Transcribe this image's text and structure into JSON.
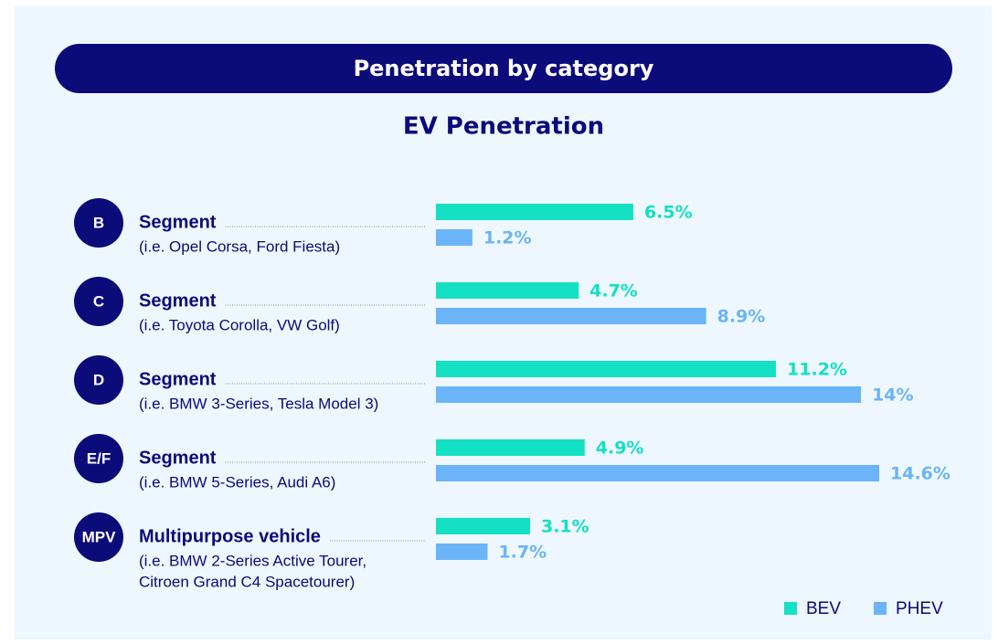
{
  "chart_data": {
    "type": "bar",
    "orientation": "horizontal",
    "header": "Penetration by category",
    "title": "EV Penetration",
    "categories": [
      {
        "badge": "B",
        "name": "Segment",
        "examples": [
          "(i.e. Opel Corsa, Ford Fiesta)"
        ]
      },
      {
        "badge": "C",
        "name": "Segment",
        "examples": [
          "(i.e. Toyota Corolla, VW Golf)"
        ]
      },
      {
        "badge": "D",
        "name": "Segment",
        "examples": [
          "(i.e. BMW 3-Series, Tesla Model 3)"
        ]
      },
      {
        "badge": "E/F",
        "name": "Segment",
        "examples": [
          "(i.e. BMW 5-Series, Audi A6)"
        ]
      },
      {
        "badge": "MPV",
        "name": "Multipurpose vehicle",
        "examples": [
          "(i.e. BMW 2-Series Active Tourer,",
          "Citroen Grand C4 Spacetourer)"
        ]
      }
    ],
    "series": [
      {
        "name": "BEV",
        "color": "#14e0c4",
        "values": [
          6.5,
          4.7,
          11.2,
          4.9,
          3.1
        ],
        "value_labels": [
          "6.5%",
          "4.7%",
          "11.2%",
          "4.9%",
          "3.1%"
        ]
      },
      {
        "name": "PHEV",
        "color": "#6ab4f7",
        "values": [
          1.2,
          8.9,
          14,
          14.6,
          1.7
        ],
        "value_labels": [
          "1.2%",
          "8.9%",
          "14%",
          "14.6%",
          "1.7%"
        ]
      }
    ],
    "legend": "bottom-right"
  }
}
